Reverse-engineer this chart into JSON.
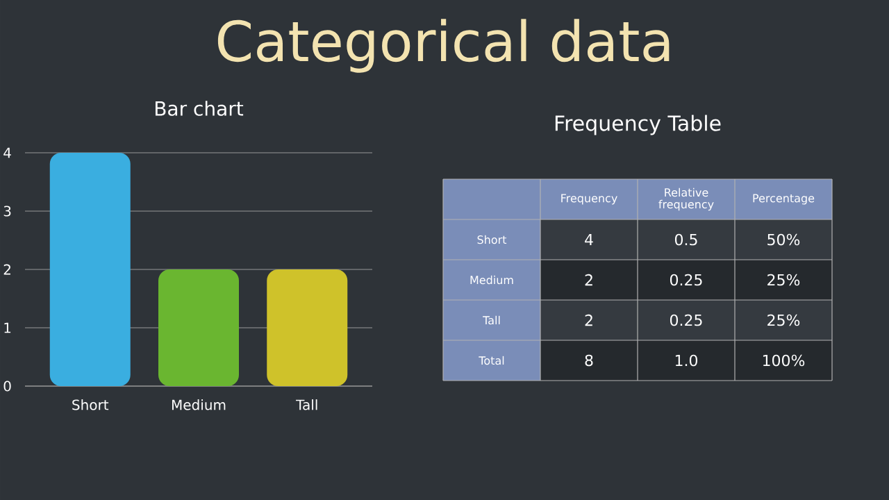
{
  "chart_data": [
    {
      "type": "bar",
      "title": "Categorical data",
      "subtitle": "Bar chart",
      "categories": [
        "Short",
        "Medium",
        "Tall"
      ],
      "values": [
        4,
        2,
        2
      ],
      "colors": [
        "#3aaee0",
        "#6ab630",
        "#cfc22a"
      ],
      "ylim": [
        0,
        4
      ],
      "yticks": [
        0,
        1,
        2,
        3,
        4
      ],
      "grid": "y"
    },
    {
      "type": "other",
      "title": "Frequency Table",
      "categories": [
        "Frequency",
        "Relative frequency",
        "Percentage"
      ],
      "y_categories": [
        "Short",
        "Medium",
        "Tall",
        "Total"
      ],
      "cell_labels": [
        [
          "4",
          "0.5",
          "50%"
        ],
        [
          "2",
          "0.25",
          "25%"
        ],
        [
          "2",
          "0.25",
          "25%"
        ],
        [
          "8",
          "1.0",
          "100%"
        ]
      ]
    }
  ]
}
